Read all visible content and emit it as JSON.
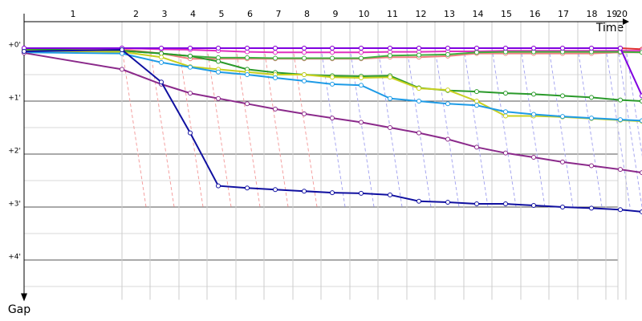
{
  "chart_data": {
    "type": "line",
    "x_label": "Time",
    "y_label": "Gap",
    "xlim": [
      0,
      770
    ],
    "ylim": [
      -0.5,
      4.75
    ],
    "yticks": [
      {
        "value": 0,
        "label": "+0'"
      },
      {
        "value": 1,
        "label": "+1'"
      },
      {
        "value": 2,
        "label": "+2'"
      },
      {
        "value": 3,
        "label": "+3'"
      },
      {
        "value": 4,
        "label": "+4'"
      }
    ],
    "minor_yticks": [
      0.5,
      1.5,
      2.5,
      3.5,
      4.5
    ],
    "xticks": [
      {
        "value": 122,
        "label": "1"
      },
      {
        "value": 157,
        "label": "2"
      },
      {
        "value": 193,
        "label": "3"
      },
      {
        "value": 228,
        "label": "4"
      },
      {
        "value": 264,
        "label": "5"
      },
      {
        "value": 299,
        "label": "6"
      },
      {
        "value": 335,
        "label": "7"
      },
      {
        "value": 370,
        "label": "8"
      },
      {
        "value": 406,
        "label": "9"
      },
      {
        "value": 441,
        "label": "10"
      },
      {
        "value": 477,
        "label": "11"
      },
      {
        "value": 512,
        "label": "12"
      },
      {
        "value": 548,
        "label": "13"
      },
      {
        "value": 583,
        "label": "14"
      },
      {
        "value": 619,
        "label": "15"
      },
      {
        "value": 654,
        "label": "16"
      },
      {
        "value": 690,
        "label": "17"
      },
      {
        "value": 725,
        "label": "18"
      },
      {
        "value": 740,
        "label": "19"
      },
      {
        "value": 750,
        "label": "20"
      }
    ],
    "grid": true,
    "x": [
      0,
      122,
      171,
      207,
      242,
      278,
      313,
      349,
      384,
      420,
      456,
      492,
      528,
      564,
      600,
      635,
      671,
      707,
      743,
      770
    ],
    "series": [
      {
        "color": "#e03030",
        "values": [
          0,
          0,
          0,
          0,
          0,
          0,
          0,
          0,
          0,
          0,
          0,
          0,
          0,
          0,
          0,
          0,
          0,
          0,
          0,
          0.02
        ]
      },
      {
        "color": "#f08080",
        "values": [
          0.01,
          0.02,
          0.1,
          0.2,
          0.2,
          0.2,
          0.2,
          0.2,
          0.2,
          0.2,
          0.17,
          0.17,
          0.15,
          0.1,
          0.1,
          0.1,
          0.1,
          0.1,
          0.08,
          0.08
        ]
      },
      {
        "color": "#e030c0",
        "values": [
          0.01,
          0,
          0.02,
          0.03,
          0.05,
          0.07,
          0.08,
          0.08,
          0.08,
          0.08,
          0.07,
          0.07,
          0.06,
          0.06,
          0.05,
          0.05,
          0.05,
          0.05,
          0.05,
          0.05
        ]
      },
      {
        "color": "#40b040",
        "values": [
          0.03,
          0.05,
          0.1,
          0.15,
          0.18,
          0.18,
          0.19,
          0.19,
          0.19,
          0.19,
          0.14,
          0.13,
          0.12,
          0.08,
          0.07,
          0.07,
          0.07,
          0.07,
          0.07,
          0.08
        ]
      },
      {
        "color": "#2a9a2a",
        "values": [
          0.02,
          0.05,
          0.1,
          0.15,
          0.25,
          0.4,
          0.46,
          0.5,
          0.52,
          0.53,
          0.52,
          0.75,
          0.8,
          0.82,
          0.85,
          0.87,
          0.9,
          0.93,
          0.98,
          1.0
        ]
      },
      {
        "color": "#c8d020",
        "values": [
          0.05,
          0.07,
          0.17,
          0.35,
          0.4,
          0.45,
          0.5,
          0.5,
          0.55,
          0.56,
          0.55,
          0.76,
          0.79,
          1.0,
          1.28,
          1.28,
          1.3,
          1.33,
          1.36,
          1.38
        ]
      },
      {
        "color": "#1e9be6",
        "values": [
          0.08,
          0.1,
          0.27,
          0.36,
          0.45,
          0.5,
          0.56,
          0.62,
          0.68,
          0.7,
          0.95,
          1.0,
          1.05,
          1.08,
          1.2,
          1.25,
          1.29,
          1.32,
          1.35,
          1.37
        ]
      },
      {
        "color": "#8b2a8b",
        "values": [
          0.09,
          0.4,
          0.68,
          0.85,
          0.95,
          1.05,
          1.15,
          1.24,
          1.32,
          1.4,
          1.5,
          1.6,
          1.72,
          1.87,
          1.98,
          2.06,
          2.15,
          2.22,
          2.29,
          2.35
        ]
      },
      {
        "color": "#8000e0",
        "values": [
          0,
          0,
          0,
          0,
          0,
          0,
          0,
          0,
          0,
          0,
          0,
          0,
          0,
          0,
          0,
          0,
          0,
          0,
          0,
          0.9
        ]
      },
      {
        "color": "#1010a0",
        "values": [
          0.06,
          0.03,
          0.64,
          1.6,
          2.6,
          2.64,
          2.67,
          2.7,
          2.73,
          2.74,
          2.77,
          2.89,
          2.91,
          2.94,
          2.94,
          2.97,
          3.0,
          3.02,
          3.05,
          3.09
        ]
      }
    ]
  }
}
